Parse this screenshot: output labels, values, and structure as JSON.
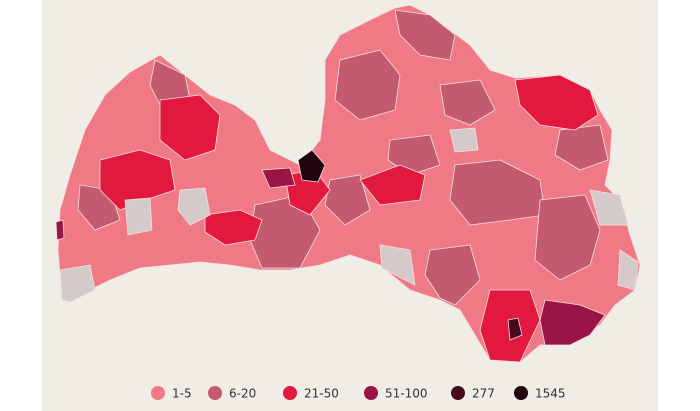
{
  "legend": {
    "items": [
      {
        "label": "1-5",
        "color": "#ef7a85"
      },
      {
        "label": "6-20",
        "color": "#c45a6e"
      },
      {
        "label": "21-50",
        "color": "#e3183f"
      },
      {
        "label": "51-100",
        "color": "#9a1445"
      },
      {
        "label": "277",
        "color": "#4a0a1e"
      },
      {
        "label": "1545",
        "color": "#1e0510"
      }
    ]
  }
}
